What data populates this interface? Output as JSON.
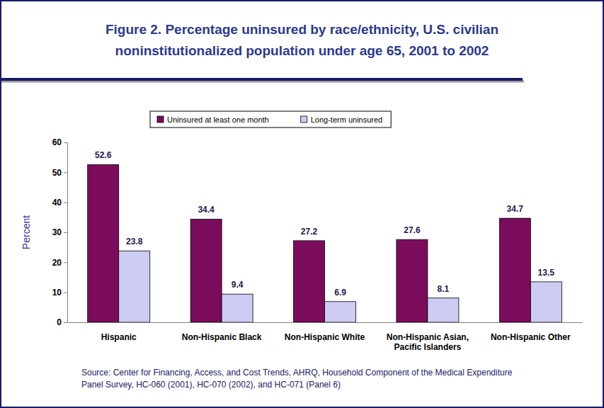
{
  "chart_data": {
    "type": "bar",
    "title": "Figure 2. Percentage uninsured by race/ethnicity, U.S. civilian noninstitutionalized population under age 65, 2001 to 2002",
    "y_label": "Percent",
    "categories": [
      "Hispanic",
      "Non-Hispanic Black",
      "Non-Hispanic White",
      "Non-Hispanic Asian, Pacific Islanders",
      "Non-Hispanic Other"
    ],
    "series": [
      {
        "name": "Uninsured at least one month",
        "color": "#7b0c5c",
        "values": [
          52.6,
          34.4,
          27.2,
          27.6,
          34.7
        ]
      },
      {
        "name": "Long-term uninsured",
        "color": "#ccccf5",
        "values": [
          23.8,
          9.4,
          6.9,
          8.1,
          13.5
        ]
      }
    ],
    "ylim": [
      0,
      60
    ],
    "yticks": [
      0,
      10,
      20,
      30,
      40,
      50,
      60
    ],
    "grid": false,
    "legend": "top",
    "data_labels": true,
    "annotations": [
      "Source: Center for Financing, Access, and Cost Trends, AHRQ, Household Component of the Medical Expenditure Panel Survey, HC-060 (2001), HC-070 (2002), and HC-071 (Panel 6)"
    ]
  }
}
